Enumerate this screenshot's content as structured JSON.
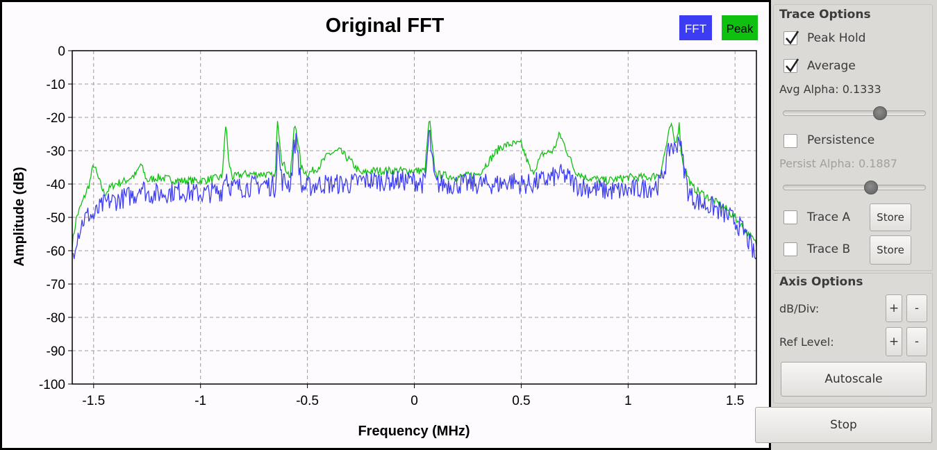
{
  "chart_data": {
    "type": "line",
    "title": "Original FFT",
    "xlabel": "Frequency (MHz)",
    "ylabel": "Amplitude (dB)",
    "xlim": [
      -1.6,
      1.6
    ],
    "ylim": [
      -100,
      0
    ],
    "x_ticks": [
      -1.5,
      -1,
      -0.5,
      0,
      0.5,
      1,
      1.5
    ],
    "x_tick_labels": [
      "-1.5",
      "-1",
      "-0.5",
      "0",
      "0.5",
      "1",
      "1.5"
    ],
    "y_ticks": [
      0,
      -10,
      -20,
      -30,
      -40,
      -50,
      -60,
      -70,
      -80,
      -90,
      -100
    ],
    "y_tick_labels": [
      "0",
      "-10",
      "-20",
      "-30",
      "-40",
      "-50",
      "-60",
      "-70",
      "-80",
      "-90",
      "-100"
    ],
    "grid": true,
    "legend_position": "top-right",
    "series": [
      {
        "name": "FFT",
        "color": "#3c3cf2",
        "x": [
          -1.6,
          -1.58,
          -1.55,
          -1.52,
          -1.5,
          -1.48,
          -1.45,
          -1.42,
          -1.4,
          -1.35,
          -1.3,
          -1.28,
          -1.25,
          -1.2,
          -1.1,
          -1.0,
          -0.9,
          -0.88,
          -0.87,
          -0.85,
          -0.8,
          -0.7,
          -0.65,
          -0.64,
          -0.62,
          -0.58,
          -0.56,
          -0.55,
          -0.53,
          -0.5,
          -0.45,
          -0.4,
          -0.35,
          -0.3,
          -0.25,
          -0.2,
          -0.1,
          0,
          0.05,
          0.07,
          0.09,
          0.1,
          0.2,
          0.3,
          0.4,
          0.45,
          0.5,
          0.55,
          0.6,
          0.65,
          0.68,
          0.72,
          0.75,
          0.8,
          0.9,
          1.0,
          1.1,
          1.15,
          1.18,
          1.2,
          1.22,
          1.24,
          1.25,
          1.28,
          1.3,
          1.35,
          1.4,
          1.45,
          1.5,
          1.55,
          1.6
        ],
        "values": [
          -62,
          -56,
          -51,
          -49,
          -50,
          -48,
          -46,
          -45,
          -45,
          -44,
          -43,
          -40,
          -43,
          -43,
          -42,
          -43,
          -42,
          -36,
          -40,
          -41,
          -41,
          -40,
          -41,
          -27,
          -39,
          -40,
          -28,
          -27,
          -41,
          -41,
          -40,
          -40,
          -40,
          -40,
          -39,
          -39,
          -39,
          -39,
          -40,
          -24,
          -37,
          -40,
          -40,
          -40,
          -40,
          -39,
          -40,
          -40,
          -39,
          -38,
          -37,
          -38,
          -40,
          -41,
          -42,
          -42,
          -41,
          -40,
          -33,
          -28,
          -30,
          -25,
          -31,
          -42,
          -44,
          -46,
          -47,
          -49,
          -51,
          -55,
          -63
        ]
      },
      {
        "name": "Peak",
        "color": "#10c010",
        "x": [
          -1.6,
          -1.58,
          -1.55,
          -1.52,
          -1.5,
          -1.48,
          -1.45,
          -1.42,
          -1.4,
          -1.35,
          -1.3,
          -1.28,
          -1.25,
          -1.2,
          -1.1,
          -1.0,
          -0.9,
          -0.88,
          -0.87,
          -0.85,
          -0.8,
          -0.7,
          -0.65,
          -0.64,
          -0.62,
          -0.58,
          -0.56,
          -0.55,
          -0.53,
          -0.5,
          -0.45,
          -0.4,
          -0.35,
          -0.3,
          -0.25,
          -0.2,
          -0.1,
          0,
          0.05,
          0.07,
          0.09,
          0.1,
          0.2,
          0.3,
          0.4,
          0.45,
          0.5,
          0.55,
          0.6,
          0.65,
          0.68,
          0.72,
          0.75,
          0.8,
          0.9,
          1.0,
          1.1,
          1.15,
          1.18,
          1.2,
          1.22,
          1.24,
          1.25,
          1.28,
          1.3,
          1.35,
          1.4,
          1.45,
          1.5,
          1.55,
          1.6
        ],
        "values": [
          -58,
          -50,
          -45,
          -40,
          -34,
          -38,
          -43,
          -41,
          -40,
          -39,
          -37,
          -34,
          -39,
          -38,
          -39,
          -39,
          -38,
          -21,
          -33,
          -38,
          -37,
          -37,
          -38,
          -20,
          -33,
          -38,
          -22,
          -24,
          -35,
          -37,
          -35,
          -31,
          -30,
          -33,
          -37,
          -36,
          -36,
          -36,
          -36,
          -20,
          -33,
          -37,
          -38,
          -37,
          -29,
          -28,
          -28,
          -37,
          -31,
          -30,
          -25,
          -31,
          -36,
          -38,
          -39,
          -38,
          -38,
          -37,
          -28,
          -22,
          -28,
          -22,
          -32,
          -38,
          -41,
          -43,
          -45,
          -47,
          -50,
          -54,
          -58
        ]
      }
    ]
  },
  "trace_options": {
    "title": "Trace Options",
    "peak_hold": {
      "label": "Peak Hold",
      "checked": true
    },
    "average": {
      "label": "Average",
      "checked": true
    },
    "avg_alpha_label": "Avg Alpha: 0.1333",
    "avg_alpha_value": 0.1333,
    "persistence": {
      "label": "Persistence",
      "checked": false
    },
    "persist_alpha_label": "Persist Alpha: 0.1887",
    "persist_alpha_value": 0.1887,
    "trace_a": {
      "label": "Trace A",
      "checked": false,
      "store_label": "Store"
    },
    "trace_b": {
      "label": "Trace B",
      "checked": false,
      "store_label": "Store"
    }
  },
  "axis_options": {
    "title": "Axis Options",
    "db_div_label": "dB/Div:",
    "ref_level_label": "Ref Level:",
    "plus_label": "+",
    "minus_label": "-",
    "autoscale_label": "Autoscale"
  },
  "stop_label": "Stop"
}
